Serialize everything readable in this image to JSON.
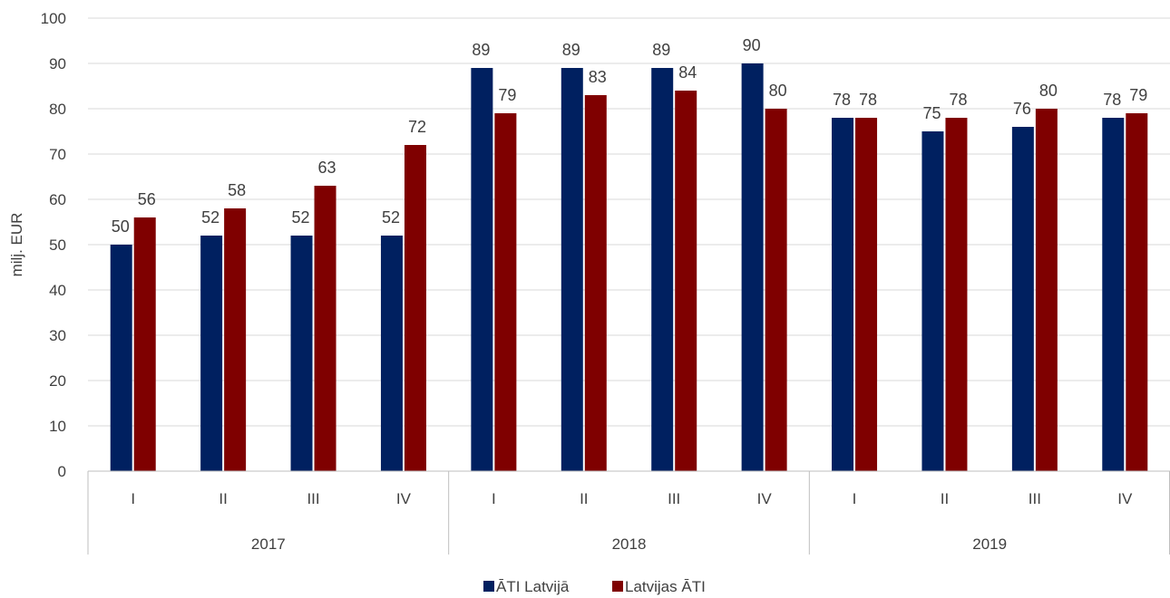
{
  "chart_data": {
    "type": "bar",
    "title": "",
    "ylabel": "milj. EUR",
    "xlabel": "",
    "ylim": [
      0,
      100
    ],
    "yticks": [
      0,
      10,
      20,
      30,
      40,
      50,
      60,
      70,
      80,
      90,
      100
    ],
    "grid": true,
    "legend_position": "bottom",
    "groups": [
      {
        "label": "2017",
        "categories": [
          "I",
          "II",
          "III",
          "IV"
        ]
      },
      {
        "label": "2018",
        "categories": [
          "I",
          "II",
          "III",
          "IV"
        ]
      },
      {
        "label": "2019",
        "categories": [
          "I",
          "II",
          "III",
          "IV"
        ]
      }
    ],
    "categories": [
      "I",
      "II",
      "III",
      "IV",
      "I",
      "II",
      "III",
      "IV",
      "I",
      "II",
      "III",
      "IV"
    ],
    "series": [
      {
        "name": "ĀTI Latvijā",
        "color": "#002060",
        "values": [
          50,
          52,
          52,
          52,
          89,
          89,
          89,
          90,
          78,
          75,
          76,
          78
        ]
      },
      {
        "name": "Latvijas ĀTI",
        "color": "#7F0000",
        "values": [
          56,
          58,
          63,
          72,
          79,
          83,
          84,
          80,
          78,
          78,
          80,
          79
        ]
      }
    ]
  }
}
